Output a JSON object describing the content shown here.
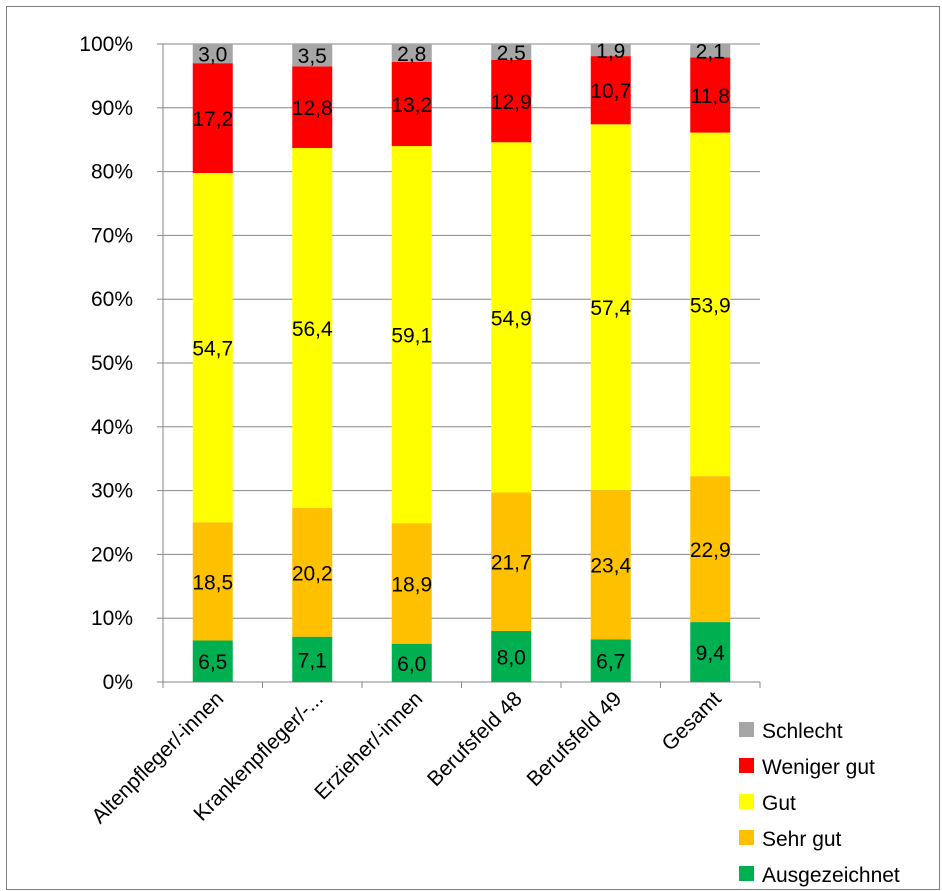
{
  "chart_data": {
    "type": "bar",
    "stacked": true,
    "percent_stacked": true,
    "categories": [
      "Altenpfleger/-innen",
      "Krankenpfleger/-...",
      "Erzieher/-innen",
      "Berufsfeld 48",
      "Berufsfeld 49",
      "Gesamt"
    ],
    "series": [
      {
        "name": "Ausgezeichnet",
        "color": "#00b050",
        "values": [
          6.5,
          7.1,
          6.0,
          8.0,
          6.7,
          9.4
        ],
        "labels": [
          "6,5",
          "7,1",
          "6,0",
          "8,0",
          "6,7",
          "9,4"
        ]
      },
      {
        "name": "Sehr gut",
        "color": "#ffc000",
        "values": [
          18.5,
          20.2,
          18.9,
          21.7,
          23.4,
          22.9
        ],
        "labels": [
          "18,5",
          "20,2",
          "18,9",
          "21,7",
          "23,4",
          "22,9"
        ]
      },
      {
        "name": "Gut",
        "color": "#ffff00",
        "values": [
          54.7,
          56.4,
          59.1,
          54.9,
          57.4,
          53.9
        ],
        "labels": [
          "54,7",
          "56,4",
          "59,1",
          "54,9",
          "57,4",
          "53,9"
        ]
      },
      {
        "name": "Weniger gut",
        "color": "#ff0000",
        "values": [
          17.2,
          12.8,
          13.2,
          12.9,
          10.7,
          11.8
        ],
        "labels": [
          "17,2",
          "12,8",
          "13,2",
          "12,9",
          "10,7",
          "11,8"
        ]
      },
      {
        "name": "Schlecht",
        "color": "#a6a6a6",
        "values": [
          3.0,
          3.5,
          2.8,
          2.5,
          1.9,
          2.1
        ],
        "labels": [
          "3,0",
          "3,5",
          "2,8",
          "2,5",
          "1,9",
          "2,1"
        ]
      }
    ],
    "ylim": [
      0,
      100
    ],
    "yticks": [
      "0%",
      "10%",
      "20%",
      "30%",
      "40%",
      "50%",
      "60%",
      "70%",
      "80%",
      "90%",
      "100%"
    ],
    "grid": true,
    "legend_position": "bottom-right",
    "legend_order": [
      "Schlecht",
      "Weniger gut",
      "Gut",
      "Sehr gut",
      "Ausgezeichnet"
    ]
  }
}
